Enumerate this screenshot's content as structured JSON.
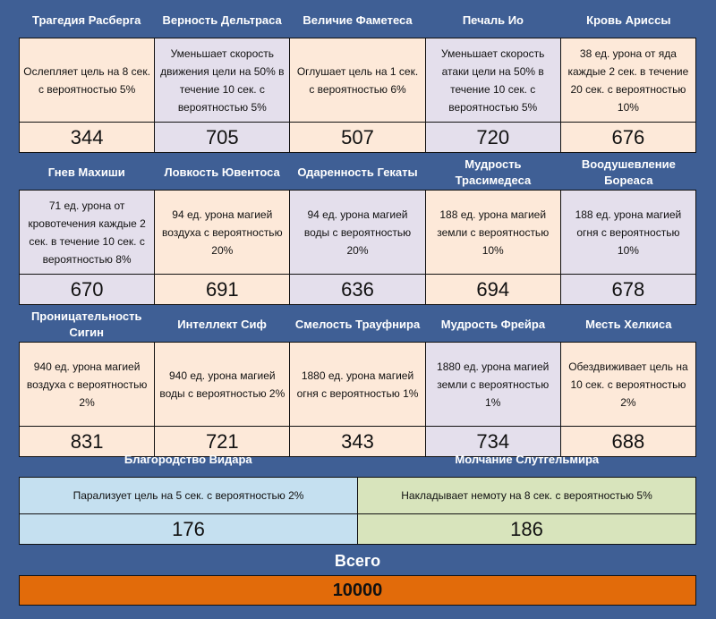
{
  "rows": [
    {
      "cells": [
        {
          "name": "Трагедия Расберга",
          "desc": "Ослепляет цель на 8 сек. с вероятностью 5%",
          "value": "344",
          "color": "peach"
        },
        {
          "name": "Верность Дельтраса",
          "desc": "Уменьшает скорость движения цели на 50% в течение 10 сек. с вероятностью 5%",
          "value": "705",
          "color": "lav"
        },
        {
          "name": "Величие Фаметеса",
          "desc": "Оглушает цель на 1 сек. с вероятностью 6%",
          "value": "507",
          "color": "peach"
        },
        {
          "name": "Печаль Ио",
          "desc": "Уменьшает скорость атаки цели на 50% в течение 10 сек. с вероятностью 5%",
          "value": "720",
          "color": "lav"
        },
        {
          "name": "Кровь Ариссы",
          "desc": "38 ед. урона от яда каждые 2 сек. в течение 20 сек. с вероятностью 10%",
          "value": "676",
          "color": "peach"
        }
      ]
    },
    {
      "cells": [
        {
          "name": "Гнев Махиши",
          "desc": "71 ед. урона от кровотечения каждые 2 сек. в течение 10 сек. с вероятностью 8%",
          "value": "670",
          "color": "lav"
        },
        {
          "name": "Ловкость Ювентоса",
          "desc": "94 ед. урона магией воздуха с вероятностью 20%",
          "value": "691",
          "color": "peach"
        },
        {
          "name": "Одаренность Гекаты",
          "desc": "94 ед. урона магией воды с вероятностью 20%",
          "value": "636",
          "color": "lav"
        },
        {
          "name": "Мудрость Трасимедеса",
          "desc": "188 ед. урона магией земли с вероятностью 10%",
          "value": "694",
          "color": "peach"
        },
        {
          "name": "Воодушевление Бореаса",
          "desc": "188 ед. урона магией огня с вероятностью 10%",
          "value": "678",
          "color": "lav"
        }
      ]
    },
    {
      "cells": [
        {
          "name": "Проницательность Сигин",
          "desc": "940 ед. урона магией воздуха с вероятностью 2%",
          "value": "831",
          "color": "peach"
        },
        {
          "name": "Интеллект Сиф",
          "desc": "940 ед. урона магией воды с вероятностью 2%",
          "value": "721",
          "color": "peach"
        },
        {
          "name": "Смелость Трауфнира",
          "desc": "1880 ед. урона магией огня с вероятностью 1%",
          "value": "343",
          "color": "peach"
        },
        {
          "name": "Мудрость Фрейра",
          "desc": "1880 ед. урона магией земли с вероятностью 1%",
          "value": "734",
          "color": "lav"
        },
        {
          "name": "Месть Хелкиса",
          "desc": "Обездвиживает цель на 10 сек. с вероятностью 2%",
          "value": "688",
          "color": "peach"
        }
      ]
    }
  ],
  "bottom": [
    {
      "name": "Благородство Видара",
      "desc": "Парализует цель на 5 сек. с вероятностью 2%",
      "value": "176",
      "color": "blue"
    },
    {
      "name": "Молчание Слутгельмира",
      "desc": "Накладывает немоту на 8 сек. с вероятностью 5%",
      "value": "186",
      "color": "green"
    }
  ],
  "total": {
    "label": "Всего",
    "value": "10000"
  },
  "colors": {
    "background": "#3f5f95",
    "peach": "#fde9d9",
    "lav": "#e4dfec",
    "blue": "#c5e0f0",
    "green": "#d8e4bc",
    "total": "#e26b0a"
  }
}
